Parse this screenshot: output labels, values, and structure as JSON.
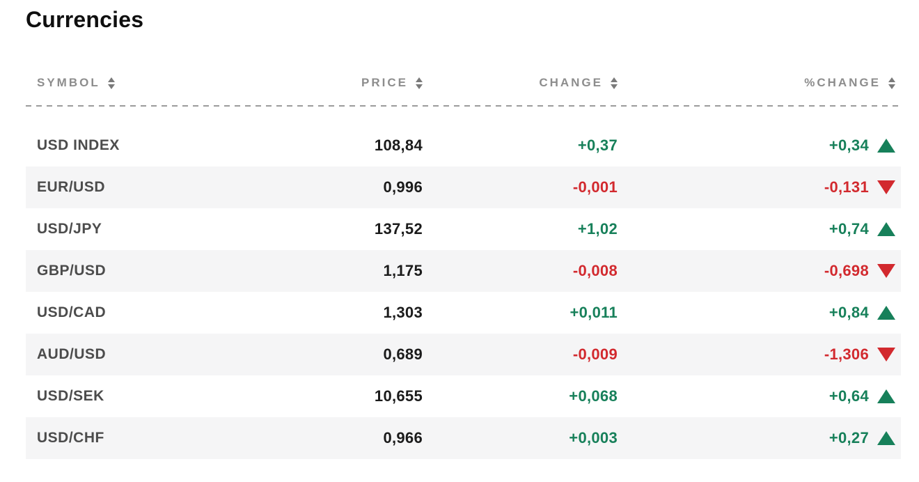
{
  "page": {
    "title": "Currencies"
  },
  "colors": {
    "positive": "#17805a",
    "negative": "#d2292e",
    "row_alt_background": "#f5f5f6",
    "header_text": "#8d8d8d"
  },
  "table": {
    "columns": [
      {
        "key": "symbol",
        "label": "SYMBOL",
        "sortable": true
      },
      {
        "key": "price",
        "label": "PRICE",
        "sortable": true
      },
      {
        "key": "change",
        "label": "CHANGE",
        "sortable": true
      },
      {
        "key": "pct_change",
        "label": "%CHANGE",
        "sortable": true
      }
    ],
    "rows": [
      {
        "symbol": "USD INDEX",
        "price": "108,84",
        "change": "+0,37",
        "pct_change": "+0,34",
        "direction": "up"
      },
      {
        "symbol": "EUR/USD",
        "price": "0,996",
        "change": "-0,001",
        "pct_change": "-0,131",
        "direction": "down"
      },
      {
        "symbol": "USD/JPY",
        "price": "137,52",
        "change": "+1,02",
        "pct_change": "+0,74",
        "direction": "up"
      },
      {
        "symbol": "GBP/USD",
        "price": "1,175",
        "change": "-0,008",
        "pct_change": "-0,698",
        "direction": "down"
      },
      {
        "symbol": "USD/CAD",
        "price": "1,303",
        "change": "+0,011",
        "pct_change": "+0,84",
        "direction": "up"
      },
      {
        "symbol": "AUD/USD",
        "price": "0,689",
        "change": "-0,009",
        "pct_change": "-1,306",
        "direction": "down"
      },
      {
        "symbol": "USD/SEK",
        "price": "10,655",
        "change": "+0,068",
        "pct_change": "+0,64",
        "direction": "up"
      },
      {
        "symbol": "USD/CHF",
        "price": "0,966",
        "change": "+0,003",
        "pct_change": "+0,27",
        "direction": "up"
      }
    ]
  },
  "icons": {
    "sort": "sort-arrows",
    "up": "triangle-up",
    "down": "triangle-down"
  }
}
